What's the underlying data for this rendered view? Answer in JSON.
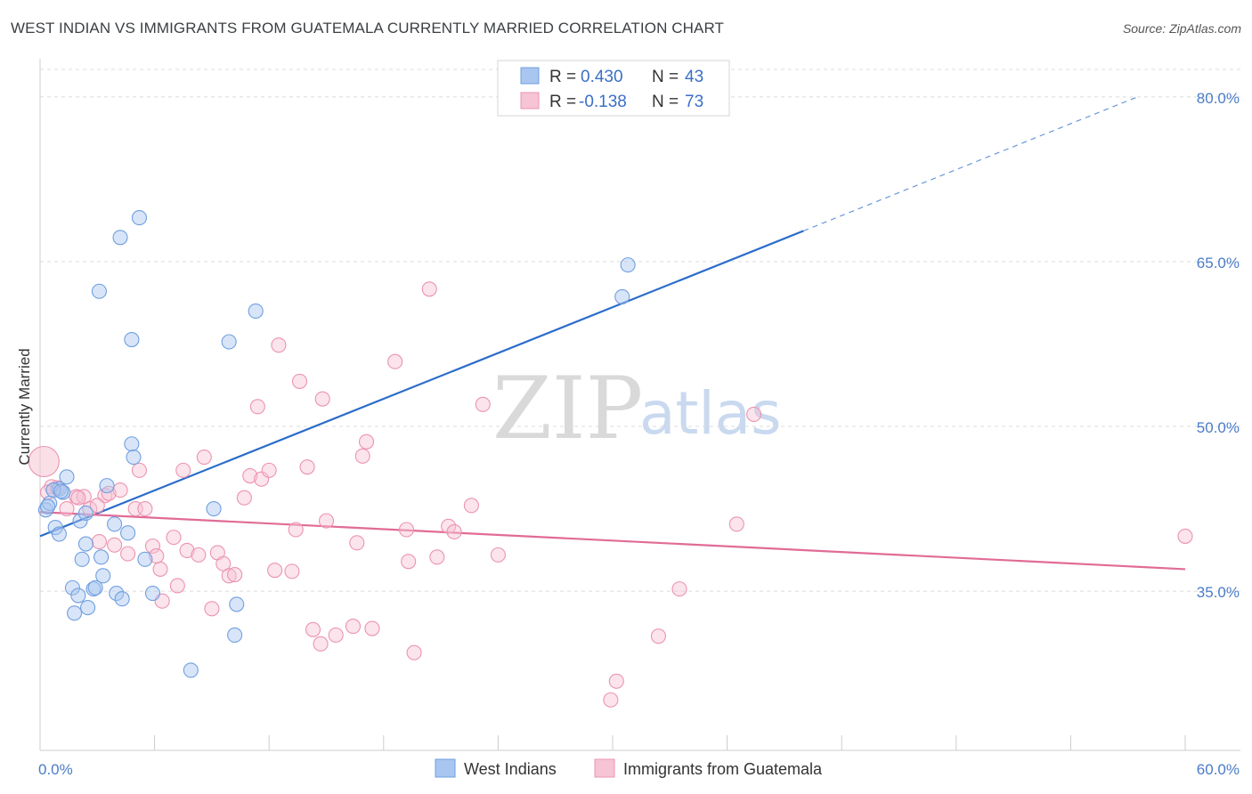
{
  "header": {
    "title": "WEST INDIAN VS IMMIGRANTS FROM GUATEMALA CURRENTLY MARRIED CORRELATION CHART",
    "source": "Source: ZipAtlas.com"
  },
  "watermark": {
    "zip": "ZIP",
    "atlas": "atlas"
  },
  "chart_data": {
    "type": "scatter",
    "title": "WEST INDIAN VS IMMIGRANTS FROM GUATEMALA CURRENTLY MARRIED CORRELATION CHART",
    "xlabel": "",
    "ylabel": "Currently Married",
    "xlim": [
      0,
      60
    ],
    "ylim": [
      20.5,
      82.5
    ],
    "x_tick_labels": {
      "left": "0.0%",
      "right": "60.0%"
    },
    "x_ticks": [
      0,
      6,
      12,
      18,
      24,
      30,
      36,
      42,
      48,
      54,
      60
    ],
    "y_ticks": [
      {
        "value": 80,
        "label": "80.0%"
      },
      {
        "value": 65,
        "label": "65.0%"
      },
      {
        "value": 50,
        "label": "50.0%"
      },
      {
        "value": 35,
        "label": "35.0%"
      }
    ],
    "grid": true,
    "legend_position": "top-center",
    "stats": [
      {
        "r_label": "R =",
        "r_value": "0.430",
        "n_label": "N =",
        "n_value": "43"
      },
      {
        "r_label": "R =",
        "r_value": "-0.138",
        "n_label": "N =",
        "n_value": "73"
      }
    ],
    "series": [
      {
        "name": "West Indians",
        "color": "#6f9fe0",
        "fill": "#a9c6f0",
        "line_color": "#2a6cc9",
        "trend": {
          "x0": 0,
          "y0": 40.0,
          "x1": 40,
          "y1": 67.8,
          "dash_to_x": 57.5,
          "dash_to_y": 80.0
        },
        "points": [
          [
            0.3,
            42.4
          ],
          [
            0.5,
            43.0
          ],
          [
            0.8,
            40.8
          ],
          [
            1.0,
            44.3
          ],
          [
            1.0,
            40.2
          ],
          [
            1.2,
            44.0
          ],
          [
            1.4,
            45.4
          ],
          [
            0.4,
            42.7
          ],
          [
            1.7,
            35.3
          ],
          [
            1.8,
            33.0
          ],
          [
            2.0,
            34.6
          ],
          [
            2.1,
            41.4
          ],
          [
            2.2,
            37.9
          ],
          [
            2.4,
            39.3
          ],
          [
            2.5,
            33.5
          ],
          [
            2.4,
            42.1
          ],
          [
            2.8,
            35.2
          ],
          [
            2.9,
            35.3
          ],
          [
            3.2,
            38.1
          ],
          [
            3.3,
            36.4
          ],
          [
            3.5,
            44.6
          ],
          [
            3.9,
            41.1
          ],
          [
            4.0,
            34.8
          ],
          [
            4.3,
            34.3
          ],
          [
            4.6,
            40.3
          ],
          [
            4.8,
            48.4
          ],
          [
            4.9,
            47.2
          ],
          [
            5.2,
            69.0
          ],
          [
            5.5,
            37.9
          ],
          [
            5.9,
            34.8
          ],
          [
            4.8,
            57.9
          ],
          [
            4.2,
            67.2
          ],
          [
            3.1,
            62.3
          ],
          [
            7.9,
            27.8
          ],
          [
            9.1,
            42.5
          ],
          [
            9.9,
            57.7
          ],
          [
            10.2,
            31.0
          ],
          [
            10.3,
            33.8
          ],
          [
            11.3,
            60.5
          ],
          [
            30.5,
            61.8
          ],
          [
            30.8,
            64.7
          ],
          [
            0.7,
            44.2
          ],
          [
            1.1,
            44.1
          ]
        ]
      },
      {
        "name": "Immigrants from Guatemala",
        "color": "#ec93b0",
        "fill": "#f6c4d4",
        "line_color": "#e16b96",
        "trend": {
          "x0": 0,
          "y0": 42.2,
          "x1": 60,
          "y1": 37.0
        },
        "points": [
          [
            0.2,
            46.8
          ],
          [
            0.6,
            44.5
          ],
          [
            0.9,
            44.4
          ],
          [
            1.4,
            42.5
          ],
          [
            1.9,
            43.6
          ],
          [
            2.3,
            43.6
          ],
          [
            2.6,
            42.5
          ],
          [
            3.1,
            39.5
          ],
          [
            3.4,
            43.7
          ],
          [
            3.6,
            43.9
          ],
          [
            3.9,
            39.2
          ],
          [
            4.2,
            44.2
          ],
          [
            4.6,
            38.4
          ],
          [
            5.0,
            42.5
          ],
          [
            5.2,
            46.0
          ],
          [
            5.5,
            42.5
          ],
          [
            5.9,
            39.1
          ],
          [
            6.3,
            37.0
          ],
          [
            6.4,
            34.1
          ],
          [
            7.0,
            39.9
          ],
          [
            7.2,
            35.5
          ],
          [
            7.5,
            46.0
          ],
          [
            7.7,
            38.7
          ],
          [
            8.3,
            38.3
          ],
          [
            8.6,
            47.2
          ],
          [
            9.0,
            33.4
          ],
          [
            9.3,
            38.5
          ],
          [
            9.6,
            37.5
          ],
          [
            9.9,
            36.4
          ],
          [
            10.2,
            36.5
          ],
          [
            10.7,
            43.5
          ],
          [
            11.0,
            45.5
          ],
          [
            11.4,
            51.8
          ],
          [
            11.6,
            45.2
          ],
          [
            12.0,
            46.0
          ],
          [
            12.5,
            57.4
          ],
          [
            13.2,
            36.8
          ],
          [
            13.4,
            40.6
          ],
          [
            13.6,
            54.1
          ],
          [
            14.0,
            46.3
          ],
          [
            14.3,
            31.5
          ],
          [
            14.7,
            30.2
          ],
          [
            14.8,
            52.5
          ],
          [
            15.0,
            41.4
          ],
          [
            15.5,
            31.0
          ],
          [
            16.4,
            31.8
          ],
          [
            16.6,
            39.4
          ],
          [
            16.9,
            47.3
          ],
          [
            17.1,
            48.6
          ],
          [
            17.4,
            31.6
          ],
          [
            18.6,
            55.9
          ],
          [
            19.2,
            40.6
          ],
          [
            19.3,
            37.7
          ],
          [
            19.6,
            29.4
          ],
          [
            20.4,
            62.5
          ],
          [
            20.8,
            38.1
          ],
          [
            21.4,
            40.9
          ],
          [
            21.7,
            40.4
          ],
          [
            22.6,
            42.8
          ],
          [
            23.2,
            52.0
          ],
          [
            24.0,
            38.3
          ],
          [
            29.9,
            25.1
          ],
          [
            30.2,
            26.8
          ],
          [
            32.4,
            30.9
          ],
          [
            33.5,
            35.2
          ],
          [
            36.5,
            41.1
          ],
          [
            37.4,
            51.1
          ],
          [
            60.0,
            40.0
          ],
          [
            0.4,
            44.0
          ],
          [
            2.0,
            43.5
          ],
          [
            6.1,
            38.2
          ],
          [
            3.0,
            42.8
          ],
          [
            12.3,
            36.9
          ]
        ]
      }
    ]
  }
}
